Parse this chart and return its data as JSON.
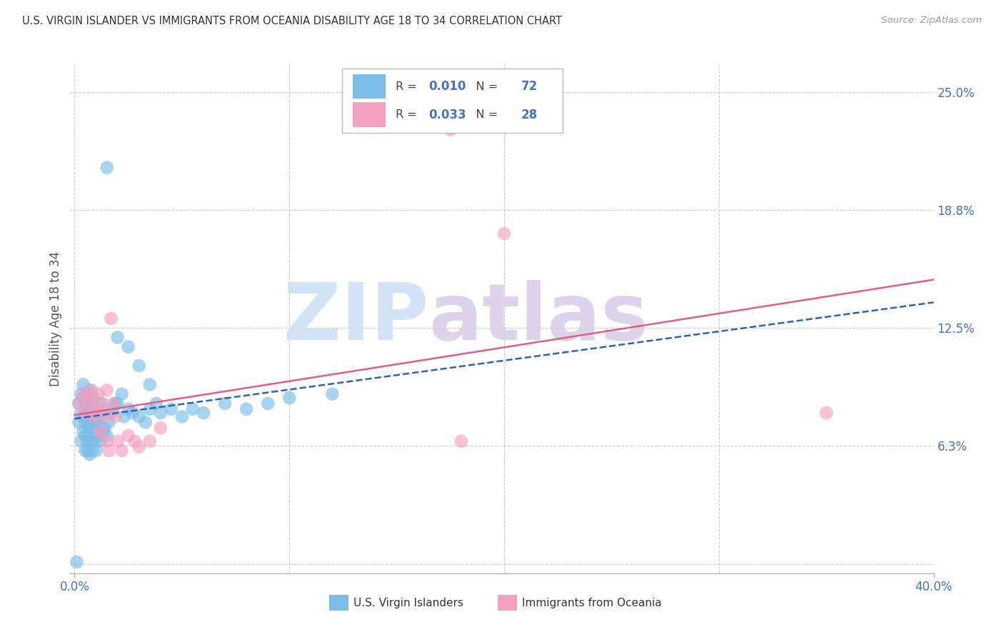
{
  "title": "U.S. VIRGIN ISLANDER VS IMMIGRANTS FROM OCEANIA DISABILITY AGE 18 TO 34 CORRELATION CHART",
  "source": "Source: ZipAtlas.com",
  "ylabel": "Disability Age 18 to 34",
  "xlabel": "",
  "xlim": [
    -0.002,
    0.4
  ],
  "ylim": [
    -0.005,
    0.265
  ],
  "ytick_vals": [
    0.0,
    0.0625,
    0.125,
    0.1875,
    0.25
  ],
  "ytick_labels": [
    "",
    "6.3%",
    "12.5%",
    "18.8%",
    "25.0%"
  ],
  "xtick_vals": [
    0.0,
    0.4
  ],
  "xtick_labels": [
    "0.0%",
    "40.0%"
  ],
  "series1_label": "U.S. Virgin Islanders",
  "series1_R": "0.010",
  "series1_N": "72",
  "series1_color": "#7bbde8",
  "series1_line_color": "#3060c0",
  "series2_label": "Immigrants from Oceania",
  "series2_R": "0.033",
  "series2_N": "28",
  "series2_color": "#f4a0c0",
  "series2_line_color": "#e06080",
  "background_color": "#ffffff",
  "grid_color": "#cccccc",
  "title_color": "#333333",
  "axis_label_color": "#555555",
  "tick_label_color": "#4472c4",
  "watermark_zip_color": "#ccdff5",
  "watermark_atlas_color": "#d8cce8",
  "series1_x": [
    0.001,
    0.002,
    0.002,
    0.003,
    0.003,
    0.003,
    0.004,
    0.004,
    0.004,
    0.004,
    0.005,
    0.005,
    0.005,
    0.005,
    0.006,
    0.006,
    0.006,
    0.006,
    0.006,
    0.007,
    0.007,
    0.007,
    0.007,
    0.007,
    0.008,
    0.008,
    0.008,
    0.009,
    0.009,
    0.009,
    0.01,
    0.01,
    0.01,
    0.011,
    0.011,
    0.012,
    0.012,
    0.013,
    0.013,
    0.014,
    0.015,
    0.016,
    0.017,
    0.018,
    0.019,
    0.02,
    0.022,
    0.023,
    0.025,
    0.027,
    0.03,
    0.033,
    0.035,
    0.038,
    0.04,
    0.045,
    0.05,
    0.055,
    0.06,
    0.07,
    0.08,
    0.09,
    0.1,
    0.12,
    0.02,
    0.025,
    0.03,
    0.035,
    0.015,
    0.01,
    0.012,
    0.008
  ],
  "series1_y": [
    0.001,
    0.075,
    0.085,
    0.065,
    0.08,
    0.09,
    0.07,
    0.078,
    0.088,
    0.095,
    0.06,
    0.068,
    0.075,
    0.085,
    0.06,
    0.065,
    0.072,
    0.08,
    0.09,
    0.058,
    0.065,
    0.075,
    0.082,
    0.092,
    0.06,
    0.072,
    0.085,
    0.065,
    0.075,
    0.088,
    0.06,
    0.07,
    0.082,
    0.068,
    0.08,
    0.065,
    0.078,
    0.07,
    0.085,
    0.072,
    0.068,
    0.075,
    0.08,
    0.082,
    0.085,
    0.085,
    0.09,
    0.078,
    0.082,
    0.08,
    0.078,
    0.075,
    0.082,
    0.085,
    0.08,
    0.082,
    0.078,
    0.082,
    0.08,
    0.085,
    0.082,
    0.085,
    0.088,
    0.09,
    0.12,
    0.115,
    0.105,
    0.095,
    0.21,
    0.075,
    0.08,
    0.082
  ],
  "series2_x": [
    0.002,
    0.004,
    0.005,
    0.006,
    0.007,
    0.008,
    0.009,
    0.01,
    0.011,
    0.012,
    0.013,
    0.014,
    0.015,
    0.016,
    0.017,
    0.018,
    0.019,
    0.02,
    0.022,
    0.025,
    0.028,
    0.03,
    0.035,
    0.04,
    0.18,
    0.015,
    0.012,
    0.35
  ],
  "series2_y": [
    0.085,
    0.09,
    0.08,
    0.088,
    0.085,
    0.092,
    0.078,
    0.082,
    0.09,
    0.085,
    0.082,
    0.078,
    0.065,
    0.06,
    0.13,
    0.085,
    0.078,
    0.065,
    0.06,
    0.068,
    0.065,
    0.062,
    0.065,
    0.072,
    0.065,
    0.092,
    0.07,
    0.08
  ],
  "series2_outlier_x": [
    0.175
  ],
  "series2_outlier_y": [
    0.23
  ],
  "series2_high_x": [
    0.2
  ],
  "series2_high_y": [
    0.175
  ]
}
